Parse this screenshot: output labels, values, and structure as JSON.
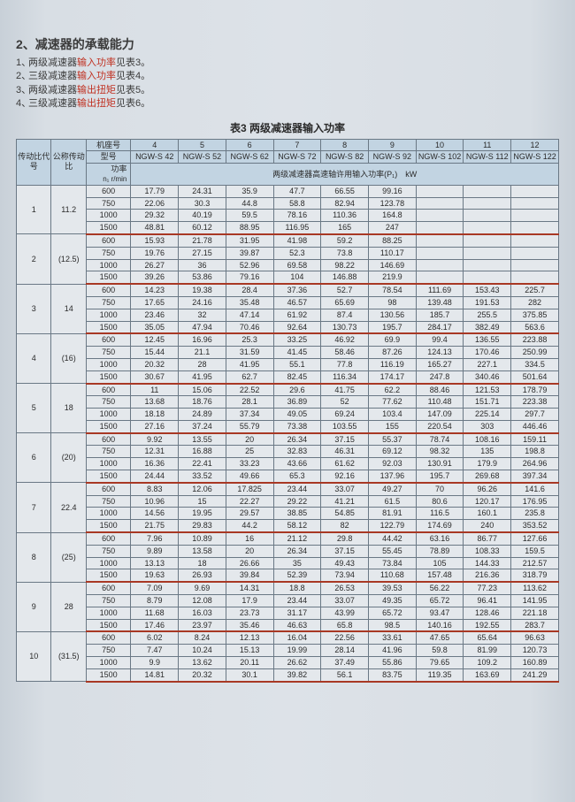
{
  "section_title": "2、减速器的承载能力",
  "notes": [
    {
      "num": "1、",
      "pre": "两级减速器",
      "hl": "输入功率",
      "post": "见表3。"
    },
    {
      "num": "2、",
      "pre": "三级减速器",
      "hl": "输入功率",
      "post": "见表4。"
    },
    {
      "num": "3、",
      "pre": "两级减速器",
      "hl": "输出扭矩",
      "post": "见表5。"
    },
    {
      "num": "4、",
      "pre": "三级减速器",
      "hl": "输出扭矩",
      "post": "见表6。"
    }
  ],
  "table_title": "表3 两级减速器输入功率",
  "header": {
    "ratio_code": "传动比代号",
    "nominal_ratio": "公称传动比",
    "machine_no": "机座号",
    "model": "型号",
    "power_label": "功率",
    "speed_label": "n₁ r/min",
    "allow_power": "两级减速器高速轴许用输入功率(P₁)　kW",
    "machine_nos": [
      "4",
      "5",
      "6",
      "7",
      "8",
      "9",
      "10",
      "11",
      "12"
    ],
    "models": [
      "NGW-S 42",
      "NGW-S 52",
      "NGW-S 62",
      "NGW-S 72",
      "NGW-S 82",
      "NGW-S 92",
      "NGW-S 102",
      "NGW-S 112",
      "NGW-S 122"
    ]
  },
  "groups": [
    {
      "code": "1",
      "nom": "11.2",
      "rows": [
        {
          "s": "600",
          "v": [
            "17.79",
            "24.31",
            "35.9",
            "47.7",
            "66.55",
            "99.16",
            "",
            "",
            ""
          ]
        },
        {
          "s": "750",
          "v": [
            "22.06",
            "30.3",
            "44.8",
            "58.8",
            "82.94",
            "123.78",
            "",
            "",
            ""
          ]
        },
        {
          "s": "1000",
          "v": [
            "29.32",
            "40.19",
            "59.5",
            "78.16",
            "110.36",
            "164.8",
            "",
            "",
            ""
          ]
        },
        {
          "s": "1500",
          "v": [
            "48.81",
            "60.12",
            "88.95",
            "116.95",
            "165",
            "247",
            "",
            "",
            ""
          ]
        }
      ]
    },
    {
      "code": "2",
      "nom": "(12.5)",
      "rows": [
        {
          "s": "600",
          "v": [
            "15.93",
            "21.78",
            "31.95",
            "41.98",
            "59.2",
            "88.25",
            "",
            "",
            ""
          ]
        },
        {
          "s": "750",
          "v": [
            "19.76",
            "27.15",
            "39.87",
            "52.3",
            "73.8",
            "110.17",
            "",
            "",
            ""
          ]
        },
        {
          "s": "1000",
          "v": [
            "26.27",
            "36",
            "52.96",
            "69.58",
            "98.22",
            "146.69",
            "",
            "",
            ""
          ]
        },
        {
          "s": "1500",
          "v": [
            "39.26",
            "53.86",
            "79.16",
            "104",
            "146.88",
            "219.9",
            "",
            "",
            ""
          ]
        }
      ]
    },
    {
      "code": "3",
      "nom": "14",
      "rows": [
        {
          "s": "600",
          "v": [
            "14.23",
            "19.38",
            "28.4",
            "37.36",
            "52.7",
            "78.54",
            "111.69",
            "153.43",
            "225.7"
          ]
        },
        {
          "s": "750",
          "v": [
            "17.65",
            "24.16",
            "35.48",
            "46.57",
            "65.69",
            "98",
            "139.48",
            "191.53",
            "282"
          ]
        },
        {
          "s": "1000",
          "v": [
            "23.46",
            "32",
            "47.14",
            "61.92",
            "87.4",
            "130.56",
            "185.7",
            "255.5",
            "375.85"
          ]
        },
        {
          "s": "1500",
          "v": [
            "35.05",
            "47.94",
            "70.46",
            "92.64",
            "130.73",
            "195.7",
            "284.17",
            "382.49",
            "563.6"
          ]
        }
      ]
    },
    {
      "code": "4",
      "nom": "(16)",
      "rows": [
        {
          "s": "600",
          "v": [
            "12.45",
            "16.96",
            "25.3",
            "33.25",
            "46.92",
            "69.9",
            "99.4",
            "136.55",
            "223.88"
          ]
        },
        {
          "s": "750",
          "v": [
            "15.44",
            "21.1",
            "31.59",
            "41.45",
            "58.46",
            "87.26",
            "124.13",
            "170.46",
            "250.99"
          ]
        },
        {
          "s": "1000",
          "v": [
            "20.32",
            "28",
            "41.95",
            "55.1",
            "77.8",
            "116.19",
            "165.27",
            "227.1",
            "334.5"
          ]
        },
        {
          "s": "1500",
          "v": [
            "30.67",
            "41.95",
            "62.7",
            "82.45",
            "116.34",
            "174.17",
            "247.8",
            "340.46",
            "501.64"
          ]
        }
      ]
    },
    {
      "code": "5",
      "nom": "18",
      "rows": [
        {
          "s": "600",
          "v": [
            "11",
            "15.06",
            "22.52",
            "29.6",
            "41.75",
            "62.2",
            "88.46",
            "121.53",
            "178.79"
          ]
        },
        {
          "s": "750",
          "v": [
            "13.68",
            "18.76",
            "28.1",
            "36.89",
            "52",
            "77.62",
            "110.48",
            "151.71",
            "223.38"
          ]
        },
        {
          "s": "1000",
          "v": [
            "18.18",
            "24.89",
            "37.34",
            "49.05",
            "69.24",
            "103.4",
            "147.09",
            "225.14",
            "297.7"
          ]
        },
        {
          "s": "1500",
          "v": [
            "27.16",
            "37.24",
            "55.79",
            "73.38",
            "103.55",
            "155",
            "220.54",
            "303",
            "446.46"
          ]
        }
      ]
    },
    {
      "code": "6",
      "nom": "(20)",
      "rows": [
        {
          "s": "600",
          "v": [
            "9.92",
            "13.55",
            "20",
            "26.34",
            "37.15",
            "55.37",
            "78.74",
            "108.16",
            "159.11"
          ]
        },
        {
          "s": "750",
          "v": [
            "12.31",
            "16.88",
            "25",
            "32.83",
            "46.31",
            "69.12",
            "98.32",
            "135",
            "198.8"
          ]
        },
        {
          "s": "1000",
          "v": [
            "16.36",
            "22.41",
            "33.23",
            "43.66",
            "61.62",
            "92.03",
            "130.91",
            "179.9",
            "264.96"
          ]
        },
        {
          "s": "1500",
          "v": [
            "24.44",
            "33.52",
            "49.66",
            "65.3",
            "92.16",
            "137.96",
            "195.7",
            "269.68",
            "397.34"
          ]
        }
      ]
    },
    {
      "code": "7",
      "nom": "22.4",
      "rows": [
        {
          "s": "600",
          "v": [
            "8.83",
            "12.06",
            "17.825",
            "23.44",
            "33.07",
            "49.27",
            "70",
            "96.26",
            "141.6"
          ]
        },
        {
          "s": "750",
          "v": [
            "10.96",
            "15",
            "22.27",
            "29.22",
            "41.21",
            "61.5",
            "80.6",
            "120.17",
            "176.95"
          ]
        },
        {
          "s": "1000",
          "v": [
            "14.56",
            "19.95",
            "29.57",
            "38.85",
            "54.85",
            "81.91",
            "116.5",
            "160.1",
            "235.8"
          ]
        },
        {
          "s": "1500",
          "v": [
            "21.75",
            "29.83",
            "44.2",
            "58.12",
            "82",
            "122.79",
            "174.69",
            "240",
            "353.52"
          ]
        }
      ]
    },
    {
      "code": "8",
      "nom": "(25)",
      "rows": [
        {
          "s": "600",
          "v": [
            "7.96",
            "10.89",
            "16",
            "21.12",
            "29.8",
            "44.42",
            "63.16",
            "86.77",
            "127.66"
          ]
        },
        {
          "s": "750",
          "v": [
            "9.89",
            "13.58",
            "20",
            "26.34",
            "37.15",
            "55.45",
            "78.89",
            "108.33",
            "159.5"
          ]
        },
        {
          "s": "1000",
          "v": [
            "13.13",
            "18",
            "26.66",
            "35",
            "49.43",
            "73.84",
            "105",
            "144.33",
            "212.57"
          ]
        },
        {
          "s": "1500",
          "v": [
            "19.63",
            "26.93",
            "39.84",
            "52.39",
            "73.94",
            "110.68",
            "157.48",
            "216.36",
            "318.79"
          ]
        }
      ]
    },
    {
      "code": "9",
      "nom": "28",
      "rows": [
        {
          "s": "600",
          "v": [
            "7.09",
            "9.69",
            "14.31",
            "18.8",
            "26.53",
            "39.53",
            "56.22",
            "77.23",
            "113.62"
          ]
        },
        {
          "s": "750",
          "v": [
            "8.79",
            "12.08",
            "17.9",
            "23.44",
            "33.07",
            "49.35",
            "65.72",
            "96.41",
            "141.95"
          ]
        },
        {
          "s": "1000",
          "v": [
            "11.68",
            "16.03",
            "23.73",
            "31.17",
            "43.99",
            "65.72",
            "93.47",
            "128.46",
            "221.18"
          ]
        },
        {
          "s": "1500",
          "v": [
            "17.46",
            "23.97",
            "35.46",
            "46.63",
            "65.8",
            "98.5",
            "140.16",
            "192.55",
            "283.7"
          ]
        }
      ]
    },
    {
      "code": "10",
      "nom": "(31.5)",
      "rows": [
        {
          "s": "600",
          "v": [
            "6.02",
            "8.24",
            "12.13",
            "16.04",
            "22.56",
            "33.61",
            "47.65",
            "65.64",
            "96.63"
          ]
        },
        {
          "s": "750",
          "v": [
            "7.47",
            "10.24",
            "15.13",
            "19.99",
            "28.14",
            "41.96",
            "59.8",
            "81.99",
            "120.73"
          ]
        },
        {
          "s": "1000",
          "v": [
            "9.9",
            "13.62",
            "20.11",
            "26.62",
            "37.49",
            "55.86",
            "79.65",
            "109.2",
            "160.89"
          ]
        },
        {
          "s": "1500",
          "v": [
            "14.81",
            "20.32",
            "30.1",
            "39.82",
            "56.1",
            "83.75",
            "119.35",
            "163.69",
            "241.29"
          ]
        }
      ]
    }
  ]
}
